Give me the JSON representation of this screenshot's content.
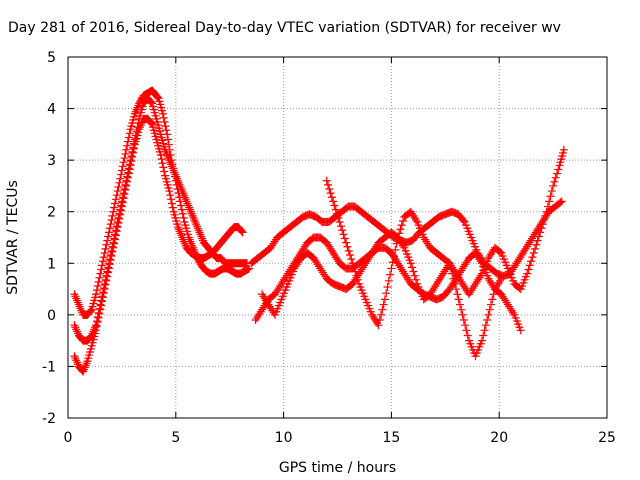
{
  "chart_data": {
    "type": "scatter",
    "title": "Day 281 of 2016, Sidereal Day-to-day VTEC variation (SDTVAR) for receiver wv",
    "xlabel": "GPS time / hours",
    "ylabel": "SDTVAR / TECUs",
    "xlim": [
      0,
      25
    ],
    "ylim": [
      -2,
      5
    ],
    "xticks": [
      0,
      5,
      10,
      15,
      20,
      25
    ],
    "yticks": [
      -2,
      -1,
      0,
      1,
      2,
      3,
      4,
      5
    ],
    "grid": true,
    "marker": "+",
    "color": "#ff0000",
    "series": [
      {
        "x": [
          0.3,
          0.5,
          0.7,
          0.9,
          1.1,
          1.3,
          1.5,
          1.7,
          1.9,
          2.1,
          2.3,
          2.5,
          2.7,
          2.9,
          3.1,
          3.3,
          3.5,
          3.7,
          3.9,
          4.0,
          4.2,
          4.4,
          4.6,
          4.8,
          5.0,
          5.2,
          5.4,
          5.6,
          5.8,
          6.0,
          6.2,
          6.4,
          6.6,
          6.8,
          7.0,
          7.2,
          7.4,
          7.6,
          7.8,
          8.0,
          8.2,
          8.4
        ],
        "y": [
          0.4,
          0.2,
          0.0,
          0.0,
          0.1,
          0.4,
          0.8,
          1.2,
          1.6,
          2.0,
          2.4,
          2.8,
          3.2,
          3.6,
          3.9,
          4.1,
          4.25,
          4.3,
          4.35,
          4.3,
          4.2,
          3.9,
          3.5,
          3.0,
          2.6,
          2.2,
          1.8,
          1.5,
          1.3,
          1.1,
          0.95,
          0.85,
          0.8,
          0.8,
          0.85,
          0.9,
          0.9,
          0.85,
          0.8,
          0.8,
          0.85,
          0.9
        ]
      },
      {
        "x": [
          0.3,
          0.5,
          0.7,
          0.9,
          1.1,
          1.3,
          1.5,
          1.7,
          1.9,
          2.1,
          2.3,
          2.5,
          2.7,
          2.9,
          3.1,
          3.3,
          3.5,
          3.7,
          3.9,
          4.1,
          4.3,
          4.5,
          4.7,
          4.9,
          5.1,
          5.3,
          5.5,
          5.7,
          5.9,
          6.1,
          6.3,
          6.5,
          6.7,
          6.9,
          7.1,
          7.3,
          7.5,
          7.7,
          7.9,
          8.1,
          8.3
        ],
        "y": [
          -0.2,
          -0.4,
          -0.5,
          -0.5,
          -0.4,
          -0.2,
          0.2,
          0.6,
          1.0,
          1.4,
          1.8,
          2.2,
          2.6,
          3.0,
          3.4,
          3.8,
          4.1,
          4.2,
          4.1,
          3.8,
          3.5,
          3.2,
          3.0,
          2.8,
          2.6,
          2.4,
          2.2,
          2.0,
          1.8,
          1.6,
          1.4,
          1.3,
          1.2,
          1.1,
          1.1,
          1.0,
          1.0,
          1.0,
          1.0,
          1.0,
          1.0
        ]
      },
      {
        "x": [
          0.3,
          0.5,
          0.7,
          0.9,
          1.1,
          1.3,
          1.5,
          1.7,
          1.9,
          2.1,
          2.3,
          2.5,
          2.7,
          2.9,
          3.1,
          3.3,
          3.5,
          3.7,
          3.9,
          4.1,
          4.3,
          4.5,
          4.7,
          4.9,
          5.1,
          5.3,
          5.5,
          5.7,
          5.9,
          6.1,
          6.3,
          6.5,
          6.7,
          6.9,
          7.1,
          7.3,
          7.5,
          7.7,
          7.9,
          8.1
        ],
        "y": [
          -0.8,
          -1.0,
          -1.1,
          -0.9,
          -0.6,
          -0.3,
          0.1,
          0.5,
          0.9,
          1.3,
          1.7,
          2.1,
          2.5,
          2.9,
          3.3,
          3.6,
          3.8,
          3.8,
          3.7,
          3.4,
          3.1,
          2.7,
          2.4,
          2.0,
          1.7,
          1.5,
          1.3,
          1.2,
          1.15,
          1.1,
          1.1,
          1.15,
          1.2,
          1.3,
          1.4,
          1.5,
          1.6,
          1.7,
          1.7,
          1.6
        ]
      },
      {
        "x": [
          8.5,
          8.8,
          9.1,
          9.4,
          9.7,
          10.0,
          10.3,
          10.6,
          10.9,
          11.2,
          11.5,
          11.8,
          12.1,
          12.4,
          12.7,
          13.0,
          13.3,
          13.6,
          13.9,
          14.2,
          14.5,
          14.8,
          15.1,
          15.4,
          15.7,
          16.0,
          16.3,
          16.6,
          16.9,
          17.2,
          17.5,
          17.8,
          18.1,
          18.4,
          18.7,
          19.0,
          19.3,
          19.6,
          19.9,
          20.2,
          20.5,
          20.8,
          21.1,
          21.4,
          21.7,
          22.0,
          22.3,
          22.6,
          22.9
        ],
        "y": [
          1.0,
          1.1,
          1.2,
          1.3,
          1.5,
          1.6,
          1.7,
          1.8,
          1.9,
          1.95,
          1.9,
          1.8,
          1.8,
          1.9,
          2.0,
          2.1,
          2.1,
          2.0,
          1.9,
          1.8,
          1.7,
          1.6,
          1.5,
          1.45,
          1.4,
          1.45,
          1.6,
          1.7,
          1.8,
          1.9,
          1.95,
          2.0,
          1.95,
          1.8,
          1.5,
          1.2,
          1.0,
          0.9,
          0.8,
          0.75,
          0.8,
          1.0,
          1.2,
          1.4,
          1.6,
          1.8,
          2.0,
          2.1,
          2.2
        ]
      },
      {
        "x": [
          8.7,
          9.0,
          9.3,
          9.6,
          9.9,
          10.2,
          10.5,
          10.8,
          11.1,
          11.4,
          11.7,
          12.0,
          12.3,
          12.6,
          12.9,
          13.2,
          13.5,
          13.8,
          14.1,
          14.4,
          14.7,
          15.0,
          15.3,
          15.6,
          15.9,
          16.2,
          16.5,
          16.8,
          17.1,
          17.4,
          17.7,
          18.0,
          18.3,
          18.6,
          18.9,
          19.2,
          19.5,
          19.8,
          20.1,
          20.4,
          20.7,
          21.0
        ],
        "y": [
          -0.1,
          0.1,
          0.3,
          0.4,
          0.6,
          0.8,
          1.0,
          1.2,
          1.4,
          1.5,
          1.5,
          1.4,
          1.2,
          1.0,
          0.9,
          0.9,
          1.0,
          1.1,
          1.2,
          1.3,
          1.3,
          1.2,
          1.0,
          0.8,
          0.6,
          0.5,
          0.4,
          0.35,
          0.3,
          0.35,
          0.5,
          0.7,
          0.9,
          1.1,
          1.2,
          1.0,
          0.7,
          0.5,
          0.4,
          0.2,
          0.0,
          -0.3
        ]
      },
      {
        "x": [
          9.0,
          9.3,
          9.6,
          9.9,
          10.2,
          10.5,
          10.8,
          11.1,
          11.4,
          11.7,
          12.0,
          12.3,
          12.6,
          12.9,
          13.2,
          13.5,
          13.8,
          14.1,
          14.4,
          14.7,
          15.0,
          15.3,
          15.6,
          15.9,
          16.2,
          16.5,
          16.8,
          17.1,
          17.4,
          17.7,
          18.0,
          18.3,
          18.6,
          18.9,
          19.2,
          19.5,
          19.8,
          20.1,
          20.4,
          20.7,
          21.0,
          21.3,
          21.6,
          21.9,
          22.2,
          22.5,
          22.8,
          23.0
        ],
        "y": [
          0.4,
          0.2,
          0.0,
          0.3,
          0.6,
          0.9,
          1.1,
          1.2,
          1.1,
          0.9,
          0.7,
          0.6,
          0.55,
          0.5,
          0.6,
          0.8,
          1.0,
          1.2,
          1.4,
          1.5,
          1.6,
          1.5,
          1.3,
          1.0,
          0.6,
          0.3,
          0.4,
          0.6,
          0.8,
          1.0,
          0.8,
          0.6,
          0.4,
          0.6,
          0.8,
          1.1,
          1.3,
          1.2,
          0.9,
          0.6,
          0.5,
          0.8,
          1.2,
          1.6,
          2.0,
          2.5,
          2.9,
          3.2
        ]
      },
      {
        "x": [
          12.0,
          12.3,
          12.6,
          12.9,
          13.2,
          13.5,
          13.8,
          14.1,
          14.4,
          14.7,
          15.0,
          15.3,
          15.6,
          15.9,
          16.2,
          16.5,
          16.8,
          17.1,
          17.4,
          17.7,
          18.0,
          18.3,
          18.6,
          18.9,
          19.2,
          19.5,
          19.8,
          20.1
        ],
        "y": [
          2.6,
          2.2,
          1.8,
          1.4,
          1.0,
          0.6,
          0.3,
          0.0,
          -0.2,
          0.3,
          0.9,
          1.5,
          1.9,
          2.0,
          1.8,
          1.5,
          1.3,
          1.2,
          1.1,
          1.0,
          0.5,
          0.0,
          -0.5,
          -0.8,
          -0.5,
          0.0,
          0.5,
          0.7
        ]
      }
    ]
  }
}
